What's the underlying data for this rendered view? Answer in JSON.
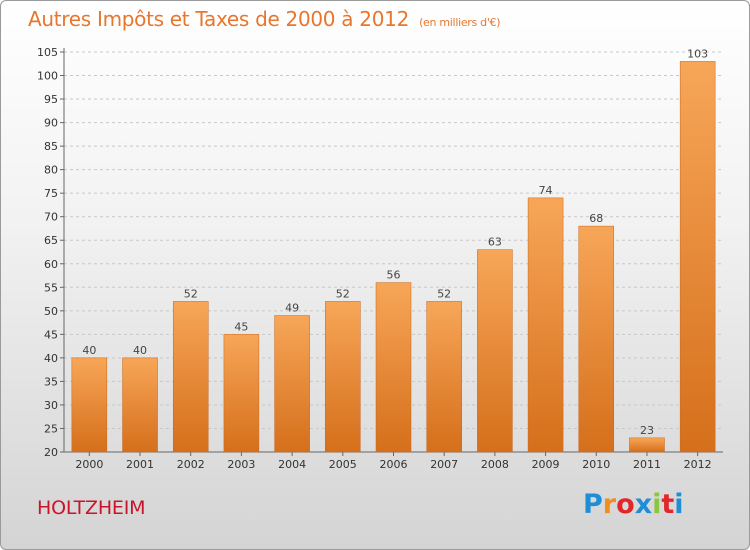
{
  "header": {
    "title": "Autres Impôts et Taxes de 2000 à 2012",
    "unit": "(en milliers d'€)"
  },
  "footer": {
    "commune": "HOLTZHEIM",
    "logo_letters": [
      "P",
      "r",
      "o",
      "x",
      "i",
      "t",
      "i"
    ],
    "logo_colors": [
      "#1e8fd6",
      "#f28c1e",
      "#e2262a",
      "#1e8fd6",
      "#8cc63e",
      "#e2262a",
      "#1e8fd6"
    ]
  },
  "colors": {
    "title": "#e8762d",
    "commune": "#c9142a",
    "bar_top": "#f7a658",
    "bar_bottom": "#d56f1b"
  },
  "chart_data": {
    "type": "bar",
    "title": "Autres Impôts et Taxes de 2000 à 2012",
    "categories": [
      "2000",
      "2001",
      "2002",
      "2003",
      "2004",
      "2005",
      "2006",
      "2007",
      "2008",
      "2009",
      "2010",
      "2011",
      "2012"
    ],
    "values": [
      40,
      40,
      52,
      45,
      49,
      52,
      56,
      52,
      63,
      74,
      68,
      23,
      103
    ],
    "ylim": [
      20,
      105
    ],
    "yticks": [
      20,
      25,
      30,
      35,
      40,
      45,
      50,
      55,
      60,
      65,
      70,
      75,
      80,
      85,
      90,
      95,
      100,
      105
    ],
    "grid": true,
    "data_labels": true,
    "legend": "none"
  }
}
